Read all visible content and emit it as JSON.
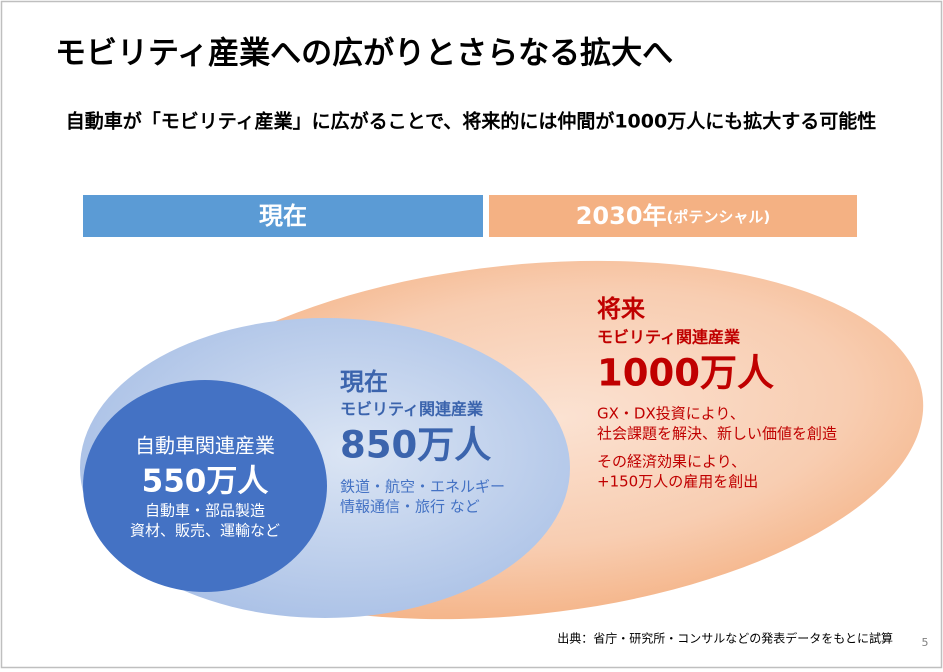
{
  "title": "モビリティ産業への広がりとさらなる拡大へ",
  "subtitle": "自動車が「モビリティ産業」に広がることで、将来的には仲間が1000万人にも拡大する可能性",
  "headers": {
    "current": "現在",
    "future": "2030年",
    "future_note": "(ポテンシャル)"
  },
  "inner": {
    "title": "自動車関連産業",
    "value": "550万人",
    "notes": [
      "自動車・部品製造",
      "資材、販売、運輸など"
    ]
  },
  "middle": {
    "label": "現在",
    "title": "モビリティ関連産業",
    "value": "850万人",
    "notes": [
      "鉄道・航空・エネルギー",
      "情報通信・旅行 など"
    ]
  },
  "outer": {
    "label": "将来",
    "title": "モビリティ関連産業",
    "value": "1000万人",
    "notes": [
      "GX・DX投資により、",
      "社会課題を解決、新しい価値を創造",
      "その経済効果により、",
      "+150万人の雇用を創出"
    ]
  },
  "source": "出典：省庁・研究所・コンサルなどの発表データをもとに試算",
  "page_number": "5"
}
